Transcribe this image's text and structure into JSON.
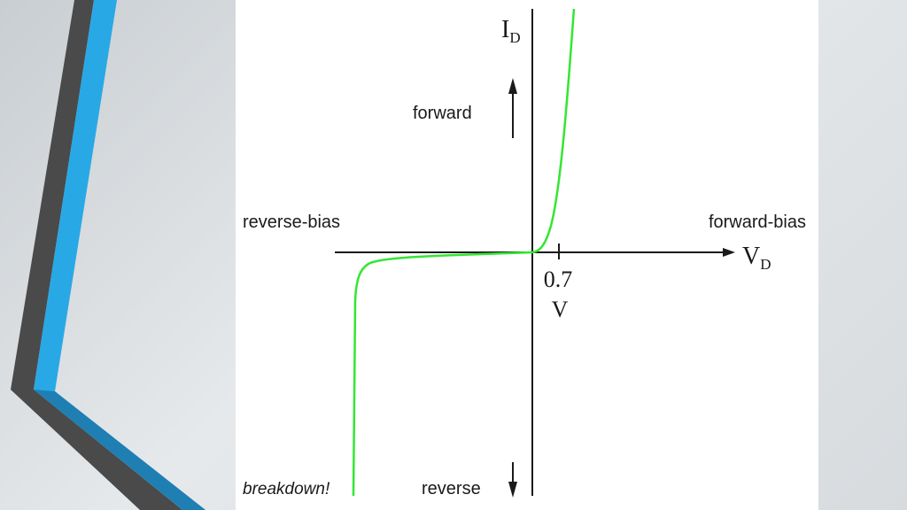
{
  "diagram": {
    "axes": {
      "y_label_main": "I",
      "y_label_sub": "D",
      "x_label_main": "V",
      "x_label_sub": "D"
    },
    "tick": {
      "value_label": "0.7",
      "unit_label": "V"
    },
    "labels": {
      "forward": "forward",
      "reverse": "reverse",
      "reverse_bias": "reverse-bias",
      "forward_bias": "forward-bias",
      "breakdown": "breakdown!"
    },
    "colors": {
      "curve": "#33e633",
      "axes": "#1a1a1a",
      "accent_blue": "#29a8e6",
      "accent_dark": "#4a4a4a"
    },
    "icons": [
      "up-arrow-icon",
      "down-arrow-icon"
    ]
  }
}
